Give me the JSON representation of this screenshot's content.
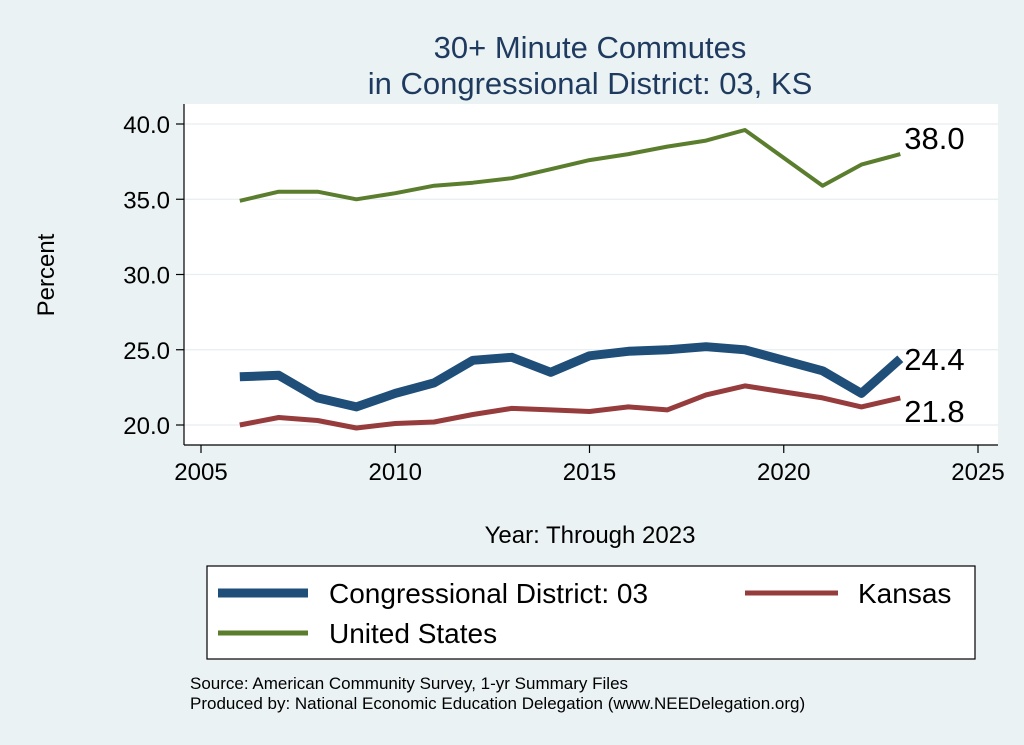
{
  "chart_data": {
    "type": "line",
    "title": [
      "30+ Minute Commutes",
      "in Congressional District:  03, KS"
    ],
    "xlabel": "Year: Through 2023",
    "ylabel": "Percent",
    "xlim": [
      2005,
      2025
    ],
    "ylim": [
      20,
      40
    ],
    "xticks": [
      2005,
      2010,
      2015,
      2020,
      2025
    ],
    "xtick_labels": [
      "2005",
      "2010",
      "2015",
      "2020",
      "2025"
    ],
    "yticks": [
      20,
      25,
      30,
      35,
      40
    ],
    "ytick_labels": [
      "20.0",
      "25.0",
      "30.0",
      "35.0",
      "40.0"
    ],
    "x": [
      2006,
      2007,
      2008,
      2009,
      2010,
      2011,
      2012,
      2013,
      2014,
      2015,
      2016,
      2017,
      2018,
      2019,
      2021,
      2022,
      2023
    ],
    "series": [
      {
        "name": "Congressional District:  03",
        "color": "#1f4e79",
        "end_label": "24.4",
        "values": [
          23.2,
          23.3,
          21.8,
          21.2,
          22.1,
          22.8,
          24.3,
          24.5,
          23.5,
          24.6,
          24.9,
          25.0,
          25.2,
          25.0,
          23.6,
          22.1,
          24.4
        ]
      },
      {
        "name": "Kansas",
        "color": "#963c3c",
        "end_label": "21.8",
        "values": [
          20.0,
          20.5,
          20.3,
          19.8,
          20.1,
          20.2,
          20.7,
          21.1,
          21.0,
          20.9,
          21.2,
          21.0,
          22.0,
          22.6,
          21.8,
          21.2,
          21.8
        ]
      },
      {
        "name": "United States",
        "color": "#5b7d2e",
        "end_label": "38.0",
        "values": [
          34.9,
          35.5,
          35.5,
          35.0,
          35.4,
          35.9,
          36.1,
          36.4,
          37.0,
          37.6,
          38.0,
          38.5,
          38.9,
          39.6,
          35.9,
          37.3,
          38.0
        ]
      }
    ],
    "legend": {
      "position": "bottom",
      "items": [
        "Congressional District:  03",
        "Kansas",
        "United States"
      ]
    },
    "grid": true
  },
  "source": {
    "line1": "Source: American Community Survey, 1-yr Summary Files",
    "line2": "Produced by: National Economic Education Delegation (www.NEEDelegation.org)"
  }
}
